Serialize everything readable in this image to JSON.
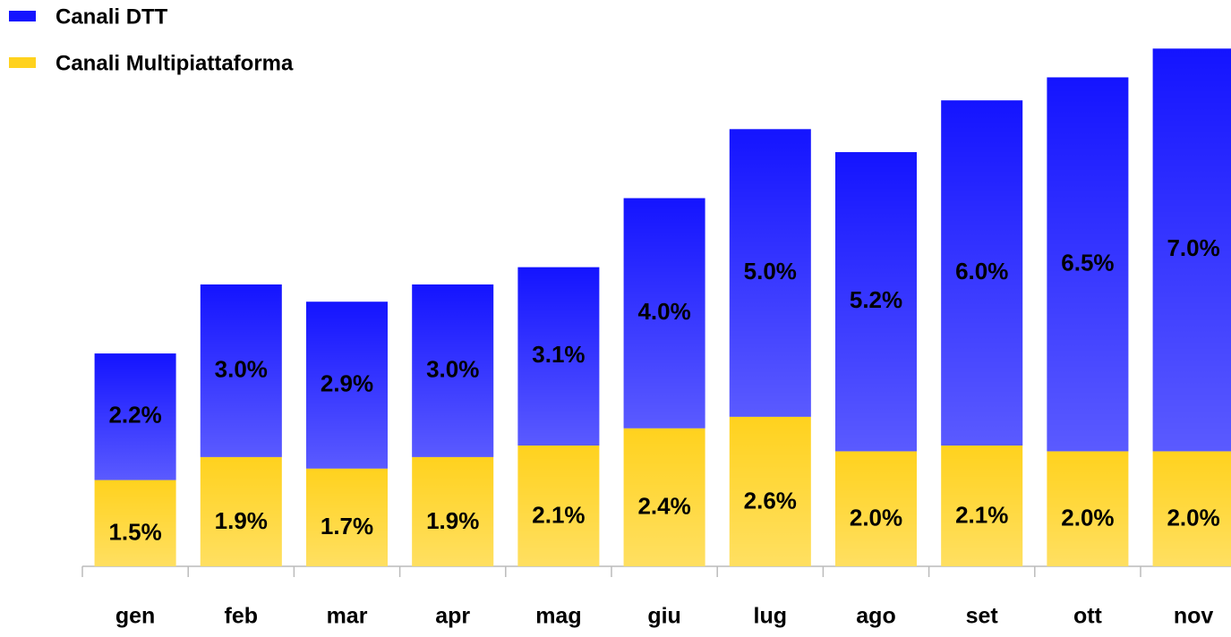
{
  "chart_data": {
    "type": "stacked_bar",
    "categories": [
      "gen",
      "feb",
      "mar",
      "apr",
      "mag",
      "giu",
      "lug",
      "ago",
      "set",
      "ott",
      "nov"
    ],
    "series": [
      {
        "name": "Canali DTT",
        "color": "#1414ff",
        "values": [
          2.2,
          3.0,
          2.9,
          3.0,
          3.1,
          4.0,
          5.0,
          5.2,
          6.0,
          6.5,
          7.0
        ],
        "value_labels": [
          "2.2%",
          "3.0%",
          "2.9%",
          "3.0%",
          "3.1%",
          "4.0%",
          "5.0%",
          "5.2%",
          "6.0%",
          "6.5%",
          "7.0%"
        ]
      },
      {
        "name": "Canali Multipiattaforma",
        "color": "#ffd21e",
        "values": [
          1.5,
          1.9,
          1.7,
          1.9,
          2.1,
          2.4,
          2.6,
          2.0,
          2.1,
          2.0,
          2.0
        ],
        "value_labels": [
          "1.5%",
          "1.9%",
          "1.7%",
          "1.9%",
          "2.1%",
          "2.4%",
          "2.6%",
          "2.0%",
          "2.1%",
          "2.0%",
          "2.0%"
        ]
      }
    ],
    "legend": "top-left"
  }
}
